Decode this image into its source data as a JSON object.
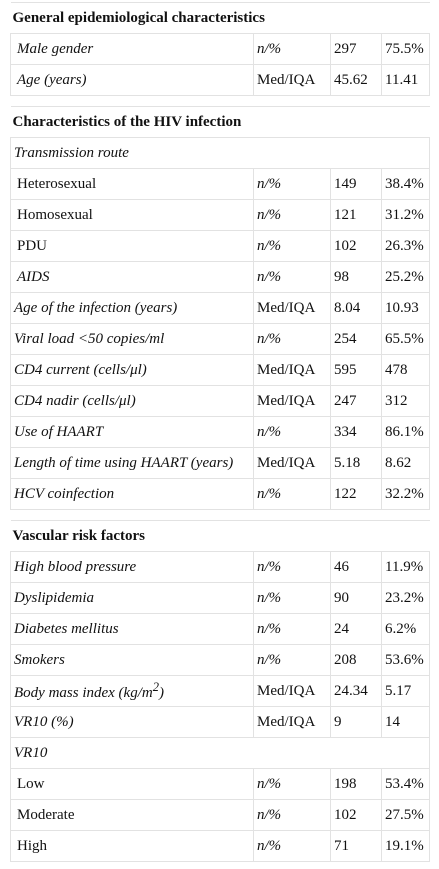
{
  "table": {
    "sections": [
      {
        "title": "General epidemiological characteristics",
        "rows": [
          {
            "label": "Male gender",
            "cells": [
              "n/%",
              "297",
              "75.5%"
            ]
          },
          {
            "label": "Age (years)",
            "cells": [
              "Med/IQA",
              "45.62",
              "11.41"
            ]
          }
        ]
      },
      {
        "title": "Characteristics of the HIV infection",
        "rows": [
          {
            "label": "Transmission route"
          },
          {
            "label": "Heterosexual",
            "cells": [
              "n/%",
              "149",
              "38.4%"
            ]
          },
          {
            "label": "Homosexual",
            "cells": [
              "n/%",
              "121",
              "31.2%"
            ]
          },
          {
            "label": "PDU",
            "cells": [
              "n/%",
              "102",
              "26.3%"
            ]
          },
          {
            "label": "AIDS",
            "cells": [
              "n/%",
              "98",
              "25.2%"
            ]
          },
          {
            "label": "Age of the infection (years)",
            "cells": [
              "Med/IQA",
              "8.04",
              "10.93"
            ]
          },
          {
            "label": "Viral load <50 copies/ml",
            "cells": [
              "n/%",
              "254",
              "65.5%"
            ]
          },
          {
            "label": "CD4 current (cells/μl)",
            "cells": [
              "Med/IQA",
              "595",
              "478"
            ]
          },
          {
            "label": "CD4 nadir (cells/μl)",
            "cells": [
              "Med/IQA",
              "247",
              "312"
            ]
          },
          {
            "label": "Use of HAART",
            "cells": [
              "n/%",
              "334",
              "86.1%"
            ]
          },
          {
            "label": "Length of time using HAART (years)",
            "cells": [
              "Med/IQA",
              "5.18",
              "8.62"
            ]
          },
          {
            "label": "HCV coinfection",
            "cells": [
              "n/%",
              "122",
              "32.2%"
            ]
          }
        ]
      },
      {
        "title": "Vascular risk factors",
        "rows": [
          {
            "label": "High blood pressure",
            "cells": [
              "n/%",
              "46",
              "11.9%"
            ]
          },
          {
            "label": "Dyslipidemia",
            "cells": [
              "n/%",
              "90",
              "23.2%"
            ]
          },
          {
            "label": "Diabetes mellitus",
            "cells": [
              "n/%",
              "24",
              "6.2%"
            ]
          },
          {
            "label": "Smokers",
            "cells": [
              "n/%",
              "208",
              "53.6%"
            ]
          },
          {
            "label": "Body mass index (kg/m",
            "label_sup": "2",
            "label_end": ")",
            "cells": [
              "Med/IQA",
              "24.34",
              "5.17"
            ]
          },
          {
            "label": "VR10 (%)",
            "cells": [
              "Med/IQA",
              "9",
              "14"
            ]
          },
          {
            "label": "VR10"
          },
          {
            "label": "Low",
            "cells": [
              "n/%",
              "198",
              "53.4%"
            ]
          },
          {
            "label": "Moderate",
            "cells": [
              "n/%",
              "102",
              "27.5%"
            ]
          },
          {
            "label": "High",
            "cells": [
              "n/%",
              "71",
              "19.1%"
            ]
          }
        ]
      }
    ]
  }
}
